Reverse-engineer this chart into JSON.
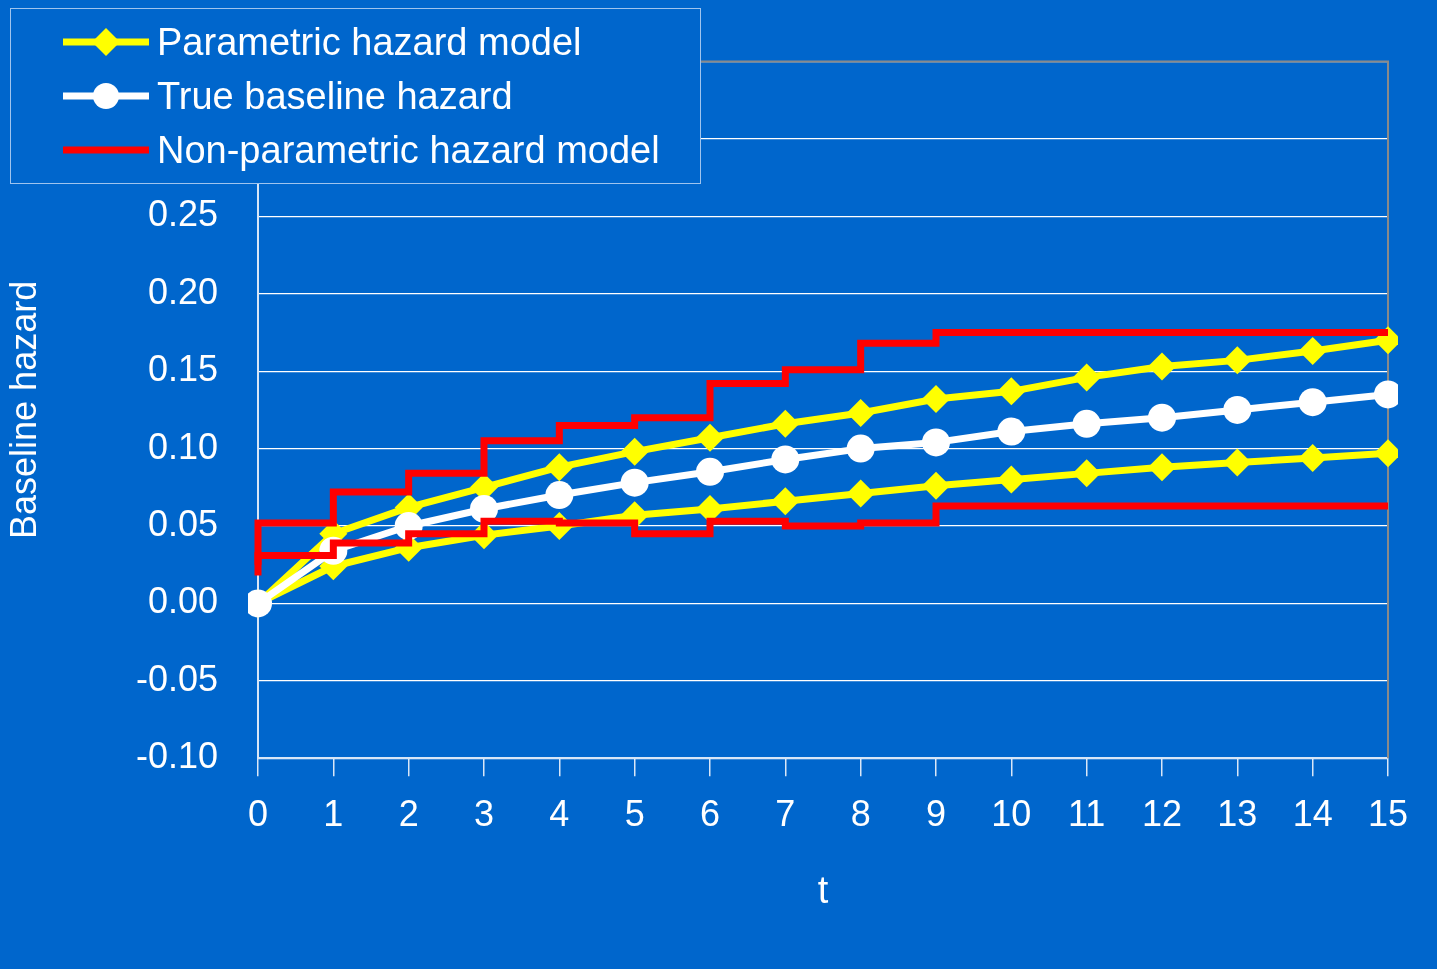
{
  "chart_data": {
    "type": "line",
    "xlabel": "t",
    "ylabel": "Baseline hazard",
    "x": [
      0,
      1,
      2,
      3,
      4,
      5,
      6,
      7,
      8,
      9,
      10,
      11,
      12,
      13,
      14,
      15
    ],
    "xlim": [
      0,
      15
    ],
    "xticks": [
      0,
      1,
      2,
      3,
      4,
      5,
      6,
      7,
      8,
      9,
      10,
      11,
      12,
      13,
      14,
      15
    ],
    "ylim": [
      -0.1,
      0.35
    ],
    "yticks": [
      {
        "value": -0.1,
        "label": "-0.10"
      },
      {
        "value": -0.05,
        "label": "-0.05"
      },
      {
        "value": 0,
        "label": "0.00"
      },
      {
        "value": 0.05,
        "label": "0.05"
      },
      {
        "value": 0.1,
        "label": "0.10"
      },
      {
        "value": 0.15,
        "label": "0.15"
      },
      {
        "value": 0.2,
        "label": "0.20"
      },
      {
        "value": 0.25,
        "label": "0.25"
      },
      {
        "value": 0.3,
        "label": null
      },
      {
        "value": 0.35,
        "label": null
      }
    ],
    "grid": "y",
    "legend": "top left",
    "series": [
      {
        "name": "Parametric hazard model",
        "color": "#ffff00",
        "marker": "diamond",
        "values": [
          0,
          0.045,
          0.062,
          0.075,
          0.088,
          0.098,
          0.107,
          0.116,
          0.123,
          0.132,
          0.137,
          0.146,
          0.153,
          0.157,
          0.163,
          0.17
        ]
      },
      {
        "color": "#ffff00",
        "marker": "diamond",
        "values": [
          0,
          0.024,
          0.036,
          0.044,
          0.05,
          0.057,
          0.061,
          0.066,
          0.071,
          0.076,
          0.08,
          0.084,
          0.088,
          0.091,
          0.094,
          0.097
        ]
      },
      {
        "name": "True baseline hazard",
        "color": "#ffffff",
        "marker": "circle",
        "values": [
          0,
          0.034,
          0.05,
          0.061,
          0.07,
          0.078,
          0.085,
          0.093,
          0.1,
          0.104,
          0.111,
          0.116,
          0.12,
          0.125,
          0.13,
          0.135
        ]
      },
      {
        "name": "Non-parametric hazard model",
        "type": "step",
        "color": "#ff0000",
        "marker": "none",
        "values": [
          0.025,
          0.052,
          0.072,
          0.084,
          0.105,
          0.115,
          0.12,
          0.142,
          0.151,
          0.168,
          0.175,
          0.175,
          0.175,
          0.175,
          0.175,
          0.175
        ]
      },
      {
        "type": "step",
        "color": "#ff0000",
        "marker": "none",
        "values": [
          0.018,
          0.031,
          0.039,
          0.045,
          0.053,
          0.052,
          0.045,
          0.053,
          0.05,
          0.052,
          0.063,
          0.063,
          0.063,
          0.063,
          0.063,
          0.063
        ]
      }
    ]
  }
}
